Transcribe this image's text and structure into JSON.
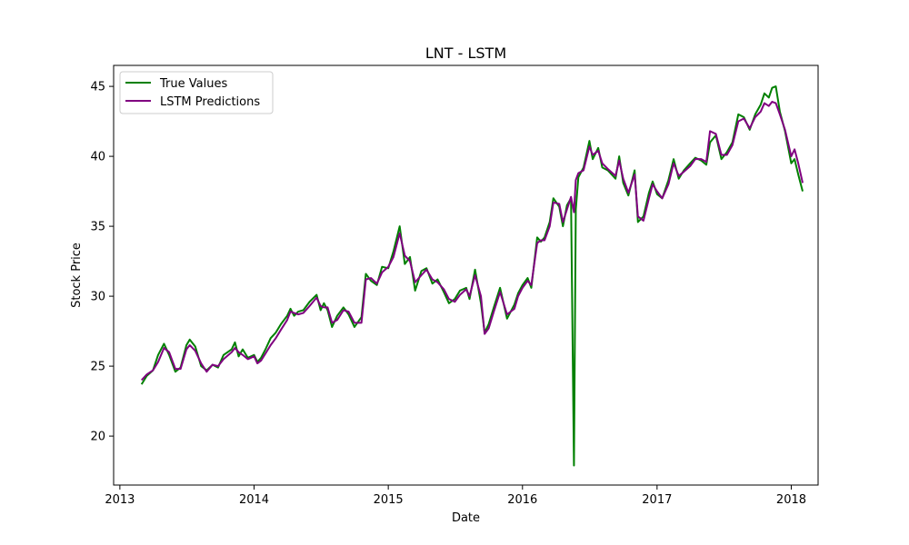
{
  "chart_data": {
    "type": "line",
    "title": "LNT - LSTM",
    "xlabel": "Date",
    "ylabel": "Stock Price",
    "xlim": [
      "2012-12-15",
      "2018-03-15"
    ],
    "ylim": [
      16.5,
      46.5
    ],
    "x_ticks": [
      "2013",
      "2014",
      "2015",
      "2016",
      "2017",
      "2018"
    ],
    "y_ticks": [
      20,
      25,
      30,
      35,
      40,
      45
    ],
    "grid": false,
    "legend_position": "upper-left",
    "series": [
      {
        "name": "True Values",
        "color": "#008000",
        "points": [
          [
            "2013-03-01",
            23.7
          ],
          [
            "2013-03-15",
            24.3
          ],
          [
            "2013-04-01",
            24.7
          ],
          [
            "2013-04-15",
            25.8
          ],
          [
            "2013-05-01",
            26.6
          ],
          [
            "2013-05-15",
            25.8
          ],
          [
            "2013-06-01",
            24.6
          ],
          [
            "2013-06-15",
            24.9
          ],
          [
            "2013-07-01",
            26.5
          ],
          [
            "2013-07-10",
            26.9
          ],
          [
            "2013-07-25",
            26.4
          ],
          [
            "2013-08-10",
            25.0
          ],
          [
            "2013-08-25",
            24.7
          ],
          [
            "2013-09-10",
            25.1
          ],
          [
            "2013-09-25",
            24.9
          ],
          [
            "2013-10-10",
            25.8
          ],
          [
            "2013-11-01",
            26.2
          ],
          [
            "2013-11-10",
            26.7
          ],
          [
            "2013-11-20",
            25.7
          ],
          [
            "2013-12-01",
            26.2
          ],
          [
            "2013-12-15",
            25.6
          ],
          [
            "2014-01-01",
            25.8
          ],
          [
            "2014-01-10",
            25.3
          ],
          [
            "2014-01-20",
            25.6
          ],
          [
            "2014-02-01",
            26.2
          ],
          [
            "2014-02-15",
            27.0
          ],
          [
            "2014-03-01",
            27.4
          ],
          [
            "2014-03-15",
            28.0
          ],
          [
            "2014-04-01",
            28.6
          ],
          [
            "2014-04-10",
            29.1
          ],
          [
            "2014-04-20",
            28.6
          ],
          [
            "2014-05-01",
            28.9
          ],
          [
            "2014-05-15",
            29.0
          ],
          [
            "2014-06-01",
            29.6
          ],
          [
            "2014-06-20",
            30.1
          ],
          [
            "2014-07-01",
            29.0
          ],
          [
            "2014-07-10",
            29.5
          ],
          [
            "2014-07-20",
            29.0
          ],
          [
            "2014-08-01",
            27.8
          ],
          [
            "2014-08-15",
            28.6
          ],
          [
            "2014-09-01",
            29.2
          ],
          [
            "2014-09-15",
            28.7
          ],
          [
            "2014-10-01",
            27.8
          ],
          [
            "2014-10-20",
            28.5
          ],
          [
            "2014-11-01",
            31.6
          ],
          [
            "2014-11-15",
            31.1
          ],
          [
            "2014-12-01",
            30.8
          ],
          [
            "2014-12-15",
            32.1
          ],
          [
            "2015-01-01",
            32.0
          ],
          [
            "2015-01-15",
            33.2
          ],
          [
            "2015-02-01",
            35.0
          ],
          [
            "2015-02-15",
            32.3
          ],
          [
            "2015-03-01",
            32.8
          ],
          [
            "2015-03-15",
            30.4
          ],
          [
            "2015-04-01",
            31.8
          ],
          [
            "2015-04-15",
            32.0
          ],
          [
            "2015-05-01",
            30.9
          ],
          [
            "2015-05-15",
            31.2
          ],
          [
            "2015-06-01",
            30.3
          ],
          [
            "2015-06-15",
            29.5
          ],
          [
            "2015-07-01",
            29.8
          ],
          [
            "2015-07-15",
            30.4
          ],
          [
            "2015-08-01",
            30.6
          ],
          [
            "2015-08-10",
            29.8
          ],
          [
            "2015-08-25",
            31.9
          ],
          [
            "2015-09-10",
            29.5
          ],
          [
            "2015-09-20",
            27.4
          ],
          [
            "2015-10-01",
            28.0
          ],
          [
            "2015-10-15",
            29.2
          ],
          [
            "2015-11-01",
            30.6
          ],
          [
            "2015-11-20",
            28.4
          ],
          [
            "2015-12-10",
            29.4
          ],
          [
            "2015-12-20",
            30.2
          ],
          [
            "2016-01-01",
            30.8
          ],
          [
            "2016-01-15",
            31.3
          ],
          [
            "2016-01-25",
            30.6
          ],
          [
            "2016-02-10",
            34.2
          ],
          [
            "2016-02-20",
            33.9
          ],
          [
            "2016-03-01",
            34.2
          ],
          [
            "2016-03-15",
            35.3
          ],
          [
            "2016-03-25",
            37.0
          ],
          [
            "2016-04-10",
            36.4
          ],
          [
            "2016-04-20",
            35.0
          ],
          [
            "2016-05-01",
            36.5
          ],
          [
            "2016-05-12",
            37.0
          ],
          [
            "2016-05-20",
            17.9
          ],
          [
            "2016-05-25",
            36.2
          ],
          [
            "2016-06-01",
            38.5
          ],
          [
            "2016-06-15",
            39.2
          ],
          [
            "2016-07-01",
            41.1
          ],
          [
            "2016-07-10",
            39.8
          ],
          [
            "2016-07-25",
            40.6
          ],
          [
            "2016-08-05",
            39.2
          ],
          [
            "2016-08-20",
            39.0
          ],
          [
            "2016-09-10",
            38.4
          ],
          [
            "2016-09-20",
            40.0
          ],
          [
            "2016-10-01",
            38.1
          ],
          [
            "2016-10-15",
            37.2
          ],
          [
            "2016-11-01",
            39.0
          ],
          [
            "2016-11-10",
            35.3
          ],
          [
            "2016-11-25",
            35.7
          ],
          [
            "2016-12-10",
            37.4
          ],
          [
            "2016-12-20",
            38.2
          ],
          [
            "2017-01-01",
            37.3
          ],
          [
            "2017-01-15",
            37.0
          ],
          [
            "2017-02-01",
            38.3
          ],
          [
            "2017-02-15",
            39.8
          ],
          [
            "2017-03-01",
            38.4
          ],
          [
            "2017-03-15",
            39.0
          ],
          [
            "2017-04-01",
            39.5
          ],
          [
            "2017-04-15",
            39.9
          ],
          [
            "2017-05-01",
            39.7
          ],
          [
            "2017-05-15",
            39.4
          ],
          [
            "2017-05-25",
            41.0
          ],
          [
            "2017-06-10",
            41.5
          ],
          [
            "2017-06-25",
            39.8
          ],
          [
            "2017-07-10",
            40.3
          ],
          [
            "2017-07-25",
            41.0
          ],
          [
            "2017-08-10",
            43.0
          ],
          [
            "2017-08-25",
            42.8
          ],
          [
            "2017-09-10",
            41.9
          ],
          [
            "2017-09-25",
            43.0
          ],
          [
            "2017-10-10",
            43.7
          ],
          [
            "2017-10-20",
            44.5
          ],
          [
            "2017-11-01",
            44.2
          ],
          [
            "2017-11-10",
            44.9
          ],
          [
            "2017-11-20",
            45.0
          ],
          [
            "2017-12-01",
            43.2
          ],
          [
            "2017-12-15",
            41.8
          ],
          [
            "2018-01-01",
            39.5
          ],
          [
            "2018-01-10",
            39.8
          ],
          [
            "2018-01-20",
            38.7
          ],
          [
            "2018-02-01",
            37.5
          ]
        ]
      },
      {
        "name": "LSTM Predictions",
        "color": "#800080",
        "points": [
          [
            "2013-03-01",
            24.0
          ],
          [
            "2013-03-15",
            24.4
          ],
          [
            "2013-04-01",
            24.7
          ],
          [
            "2013-04-15",
            25.3
          ],
          [
            "2013-05-01",
            26.3
          ],
          [
            "2013-05-15",
            26.0
          ],
          [
            "2013-06-01",
            24.8
          ],
          [
            "2013-06-15",
            24.8
          ],
          [
            "2013-07-01",
            26.2
          ],
          [
            "2013-07-10",
            26.5
          ],
          [
            "2013-07-25",
            26.1
          ],
          [
            "2013-08-10",
            25.2
          ],
          [
            "2013-08-25",
            24.6
          ],
          [
            "2013-09-10",
            25.1
          ],
          [
            "2013-09-25",
            25.0
          ],
          [
            "2013-10-10",
            25.5
          ],
          [
            "2013-11-01",
            26.0
          ],
          [
            "2013-11-10",
            26.3
          ],
          [
            "2013-11-20",
            26.0
          ],
          [
            "2013-12-01",
            25.8
          ],
          [
            "2013-12-15",
            25.5
          ],
          [
            "2014-01-01",
            25.7
          ],
          [
            "2014-01-10",
            25.2
          ],
          [
            "2014-01-20",
            25.4
          ],
          [
            "2014-02-01",
            25.9
          ],
          [
            "2014-02-15",
            26.5
          ],
          [
            "2014-03-01",
            27.0
          ],
          [
            "2014-03-15",
            27.6
          ],
          [
            "2014-04-01",
            28.3
          ],
          [
            "2014-04-10",
            28.9
          ],
          [
            "2014-04-20",
            28.8
          ],
          [
            "2014-05-01",
            28.7
          ],
          [
            "2014-05-15",
            28.8
          ],
          [
            "2014-06-01",
            29.3
          ],
          [
            "2014-06-20",
            29.9
          ],
          [
            "2014-07-01",
            29.3
          ],
          [
            "2014-07-10",
            29.2
          ],
          [
            "2014-07-20",
            29.2
          ],
          [
            "2014-08-01",
            28.1
          ],
          [
            "2014-08-15",
            28.3
          ],
          [
            "2014-09-01",
            29.0
          ],
          [
            "2014-09-15",
            28.9
          ],
          [
            "2014-10-01",
            28.1
          ],
          [
            "2014-10-20",
            28.1
          ],
          [
            "2014-11-01",
            31.2
          ],
          [
            "2014-11-15",
            31.3
          ],
          [
            "2014-12-01",
            30.9
          ],
          [
            "2014-12-15",
            31.7
          ],
          [
            "2015-01-01",
            32.1
          ],
          [
            "2015-01-15",
            32.8
          ],
          [
            "2015-02-01",
            34.5
          ],
          [
            "2015-02-15",
            32.9
          ],
          [
            "2015-03-01",
            32.5
          ],
          [
            "2015-03-15",
            31.0
          ],
          [
            "2015-04-01",
            31.5
          ],
          [
            "2015-04-15",
            31.9
          ],
          [
            "2015-05-01",
            31.2
          ],
          [
            "2015-05-15",
            31.0
          ],
          [
            "2015-06-01",
            30.5
          ],
          [
            "2015-06-15",
            29.8
          ],
          [
            "2015-07-01",
            29.6
          ],
          [
            "2015-07-15",
            30.1
          ],
          [
            "2015-08-01",
            30.5
          ],
          [
            "2015-08-10",
            30.0
          ],
          [
            "2015-08-25",
            31.5
          ],
          [
            "2015-09-10",
            30.0
          ],
          [
            "2015-09-20",
            27.3
          ],
          [
            "2015-10-01",
            27.7
          ],
          [
            "2015-10-15",
            28.9
          ],
          [
            "2015-11-01",
            30.3
          ],
          [
            "2015-11-20",
            28.7
          ],
          [
            "2015-12-10",
            29.1
          ],
          [
            "2015-12-20",
            30.0
          ],
          [
            "2016-01-01",
            30.6
          ],
          [
            "2016-01-15",
            31.1
          ],
          [
            "2016-01-25",
            30.8
          ],
          [
            "2016-02-10",
            33.8
          ],
          [
            "2016-02-20",
            34.0
          ],
          [
            "2016-03-01",
            34.0
          ],
          [
            "2016-03-15",
            35.0
          ],
          [
            "2016-03-25",
            36.7
          ],
          [
            "2016-04-10",
            36.6
          ],
          [
            "2016-04-20",
            35.3
          ],
          [
            "2016-05-01",
            36.2
          ],
          [
            "2016-05-12",
            37.1
          ],
          [
            "2016-05-20",
            36.0
          ],
          [
            "2016-05-25",
            38.3
          ],
          [
            "2016-06-01",
            38.8
          ],
          [
            "2016-06-15",
            39.0
          ],
          [
            "2016-07-01",
            40.7
          ],
          [
            "2016-07-10",
            40.1
          ],
          [
            "2016-07-25",
            40.4
          ],
          [
            "2016-08-05",
            39.5
          ],
          [
            "2016-08-20",
            39.1
          ],
          [
            "2016-09-10",
            38.6
          ],
          [
            "2016-09-20",
            39.7
          ],
          [
            "2016-10-01",
            38.4
          ],
          [
            "2016-10-15",
            37.4
          ],
          [
            "2016-11-01",
            38.7
          ],
          [
            "2016-11-10",
            35.7
          ],
          [
            "2016-11-25",
            35.4
          ],
          [
            "2016-12-10",
            37.0
          ],
          [
            "2016-12-20",
            38.0
          ],
          [
            "2017-01-01",
            37.5
          ],
          [
            "2017-01-15",
            37.0
          ],
          [
            "2017-02-01",
            38.0
          ],
          [
            "2017-02-15",
            39.5
          ],
          [
            "2017-03-01",
            38.6
          ],
          [
            "2017-03-15",
            38.9
          ],
          [
            "2017-04-01",
            39.3
          ],
          [
            "2017-04-15",
            39.8
          ],
          [
            "2017-05-01",
            39.8
          ],
          [
            "2017-05-15",
            39.6
          ],
          [
            "2017-05-25",
            41.8
          ],
          [
            "2017-06-10",
            41.6
          ],
          [
            "2017-06-25",
            40.1
          ],
          [
            "2017-07-10",
            40.1
          ],
          [
            "2017-07-25",
            40.8
          ],
          [
            "2017-08-10",
            42.5
          ],
          [
            "2017-08-25",
            42.7
          ],
          [
            "2017-09-10",
            42.0
          ],
          [
            "2017-09-25",
            42.8
          ],
          [
            "2017-10-10",
            43.2
          ],
          [
            "2017-10-20",
            43.8
          ],
          [
            "2017-11-01",
            43.6
          ],
          [
            "2017-11-10",
            43.9
          ],
          [
            "2017-11-20",
            43.8
          ],
          [
            "2017-12-01",
            43.0
          ],
          [
            "2017-12-15",
            41.9
          ],
          [
            "2018-01-01",
            40.0
          ],
          [
            "2018-01-10",
            40.5
          ],
          [
            "2018-01-20",
            39.5
          ],
          [
            "2018-02-01",
            38.1
          ]
        ]
      }
    ]
  }
}
